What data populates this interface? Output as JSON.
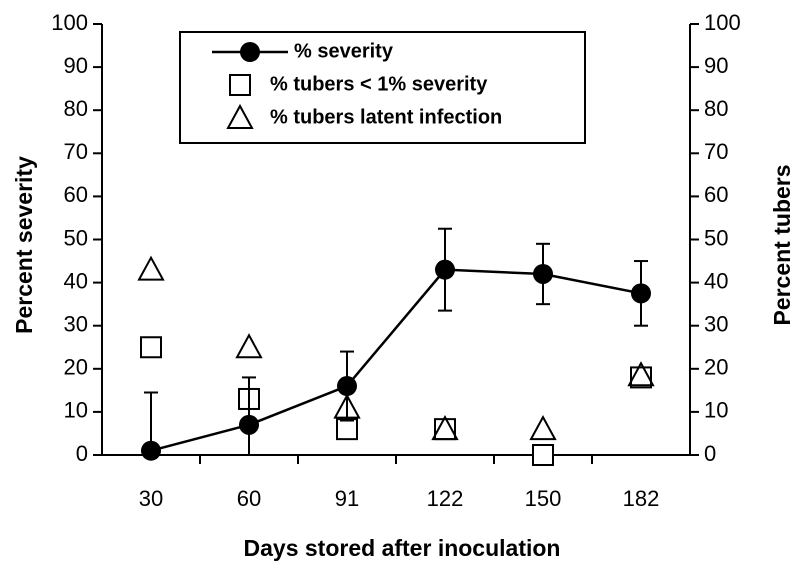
{
  "chart_data": {
    "type": "line",
    "x_label": "Days stored after inoculation",
    "y_label": "Percent severity",
    "y2_label": "Percent tubers",
    "categories": [
      "30",
      "60",
      "91",
      "122",
      "150",
      "182"
    ],
    "series": [
      {
        "name": "% severity",
        "color": "#000000",
        "marker": "circle",
        "line": true,
        "values": [
          1,
          7,
          16,
          43,
          42,
          37.5
        ],
        "errors": [
          13.5,
          11,
          8,
          9.5,
          7,
          7.5
        ]
      },
      {
        "name": "% tubers < 1% severity",
        "color": "#000000",
        "marker": "square",
        "line": false,
        "axis": "y2",
        "values": [
          25,
          13,
          6,
          6,
          0,
          18
        ]
      },
      {
        "name": "% tubers latent infection",
        "color": "#000000",
        "marker": "triangle",
        "line": false,
        "axis": "y2",
        "values": [
          43,
          25,
          11,
          6,
          6,
          18.5
        ]
      }
    ],
    "ylim": [
      0,
      100
    ],
    "yticks": [
      0,
      10,
      20,
      30,
      40,
      50,
      60,
      70,
      80,
      90,
      100
    ],
    "y2lim": [
      0,
      100
    ],
    "y2ticks": [
      0,
      10,
      20,
      30,
      40,
      50,
      60,
      70,
      80,
      90,
      100
    ],
    "legend": "top"
  }
}
